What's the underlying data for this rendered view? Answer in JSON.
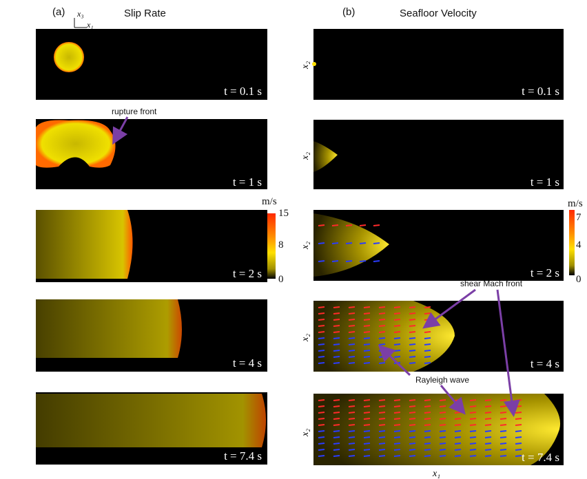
{
  "figure": {
    "left": {
      "label": "(a)",
      "title": "Slip Rate",
      "axis_x3": "x₃",
      "axis_x1": "x₁",
      "times": [
        "t = 0.1 s",
        "t = 1 s",
        "t = 2 s",
        "t = 4 s",
        "t = 7.4 s"
      ],
      "annotation": "rupture front",
      "colorbar": {
        "unit": "m/s",
        "ticks": [
          "15",
          "8",
          "0"
        ]
      }
    },
    "right": {
      "label": "(b)",
      "title": "Seafloor Velocity",
      "axis_x2": "x₂",
      "axis_x1": "x₁",
      "times": [
        "t = 0.1 s",
        "t = 1 s",
        "t = 2 s",
        "t = 4 s",
        "t = 7.4 s"
      ],
      "annotations": [
        "shear Mach front",
        "Rayleigh wave"
      ],
      "colorbar": {
        "unit": "m/s",
        "ticks": [
          "7",
          "4",
          "0"
        ]
      }
    }
  }
}
